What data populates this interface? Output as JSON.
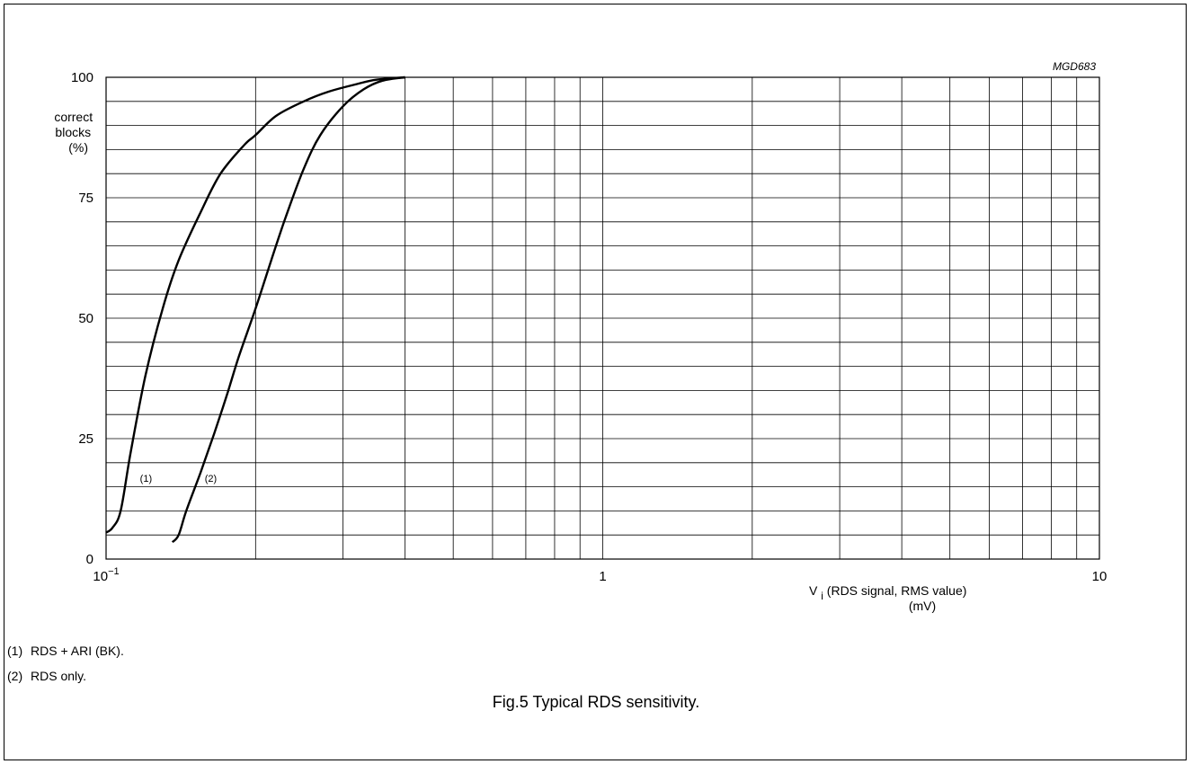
{
  "chart_data": {
    "type": "line",
    "figure_code": "MGD683",
    "caption": "Fig.5  Typical RDS sensitivity.",
    "x_scale": "log",
    "xlim": [
      0.1,
      10
    ],
    "ylim": [
      0,
      100
    ],
    "grid": true,
    "x_tick_labels": [
      {
        "value": 0.1,
        "base": "10",
        "exp": "−1"
      },
      {
        "value": 1,
        "base": "1",
        "exp": ""
      },
      {
        "value": 10,
        "base": "10",
        "exp": ""
      }
    ],
    "y_tick_labels": [
      "0",
      "25",
      "50",
      "75",
      "100"
    ],
    "y_tick_values": [
      0,
      25,
      50,
      75,
      100
    ],
    "ylabel_lines": [
      "correct",
      "blocks",
      "(%)"
    ],
    "xlabel": {
      "prefix": "V",
      "subscript": "i",
      "rest": " (RDS signal, RMS value)",
      "unit": "(mV)"
    },
    "series": [
      {
        "name": "(1)",
        "x": [
          0.1,
          0.103,
          0.107,
          0.112,
          0.12,
          0.13,
          0.14,
          0.155,
          0.17,
          0.19,
          0.2,
          0.22,
          0.25,
          0.28,
          0.32,
          0.35,
          0.4
        ],
        "y": [
          5.5,
          6.5,
          10,
          22,
          38,
          52,
          62,
          72,
          80,
          86,
          88,
          92,
          95,
          97,
          98.6,
          99.5,
          100
        ]
      },
      {
        "name": "(2)",
        "x": [
          0.136,
          0.14,
          0.145,
          0.155,
          0.165,
          0.175,
          0.185,
          0.2,
          0.215,
          0.23,
          0.25,
          0.27,
          0.3,
          0.33,
          0.36,
          0.4
        ],
        "y": [
          3.5,
          5,
          10,
          18,
          26,
          34,
          42,
          52,
          62,
          71,
          81,
          88,
          94,
          97.5,
          99.3,
          100
        ]
      }
    ]
  },
  "notes": [
    {
      "num": "(1)",
      "text": "RDS + ARI (BK)."
    },
    {
      "num": "(2)",
      "text": "RDS only."
    }
  ]
}
